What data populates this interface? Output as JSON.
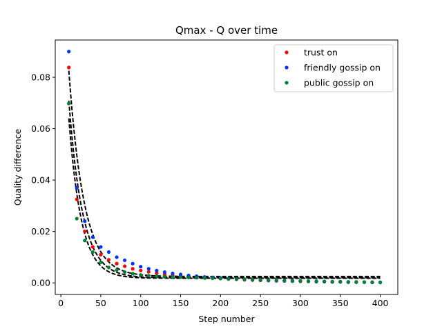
{
  "chart_data": {
    "type": "scatter",
    "title": "Qmax - Q over time",
    "xlabel": "Step number",
    "ylabel": "Quality difference",
    "xlim": [
      -7,
      422
    ],
    "ylim": [
      -0.0045,
      0.0945
    ],
    "xticks": [
      0,
      50,
      100,
      150,
      200,
      250,
      300,
      350,
      400
    ],
    "yticks": [
      0.0,
      0.02,
      0.04,
      0.06,
      0.08
    ],
    "xtick_labels": [
      "0",
      "50",
      "100",
      "150",
      "200",
      "250",
      "300",
      "350",
      "400"
    ],
    "ytick_labels": [
      "0.00",
      "0.02",
      "0.04",
      "0.06",
      "0.08"
    ],
    "grid": false,
    "legend_position": "top-right",
    "x": [
      10,
      20,
      30,
      40,
      50,
      60,
      70,
      80,
      90,
      100,
      110,
      120,
      130,
      140,
      150,
      160,
      170,
      180,
      190,
      200,
      210,
      220,
      230,
      240,
      250,
      260,
      270,
      280,
      290,
      300,
      310,
      320,
      330,
      340,
      350,
      360,
      370,
      380,
      390,
      400
    ],
    "series": [
      {
        "name": "trust on",
        "color": "#ff0000",
        "values": [
          0.0838,
          0.0325,
          0.02,
          0.014,
          0.011,
          0.009,
          0.0075,
          0.0065,
          0.0055,
          0.0048,
          0.0043,
          0.0038,
          0.0034,
          0.003,
          0.0027,
          0.0025,
          0.0023,
          0.0021,
          0.0019,
          0.0017,
          0.0015,
          0.0014,
          0.0012,
          0.0011,
          0.001,
          0.0009,
          0.0008,
          0.0008,
          0.0007,
          0.0006,
          0.0006,
          0.0005,
          0.0005,
          0.0004,
          0.0004,
          0.0003,
          0.0003,
          0.0003,
          0.0002,
          0.0002
        ]
      },
      {
        "name": "friendly gossip on",
        "color": "#0033ff",
        "values": [
          0.09,
          0.037,
          0.024,
          0.0178,
          0.014,
          0.012,
          0.01,
          0.0088,
          0.0075,
          0.0063,
          0.0055,
          0.0048,
          0.0042,
          0.0037,
          0.0033,
          0.0029,
          0.0026,
          0.0023,
          0.0021,
          0.0019,
          0.0017,
          0.0015,
          0.0014,
          0.0012,
          0.0011,
          0.001,
          0.0009,
          0.0008,
          0.0007,
          0.0007,
          0.0006,
          0.0005,
          0.0005,
          0.0004,
          0.0004,
          0.0003,
          0.0003,
          0.0003,
          0.0002,
          0.0002
        ]
      },
      {
        "name": "public gossip on",
        "color": "#008033",
        "values": [
          0.0698,
          0.025,
          0.0165,
          0.012,
          0.008,
          0.006,
          0.005,
          0.0042,
          0.0036,
          0.0031,
          0.0028,
          0.0026,
          0.0024,
          0.0023,
          0.0022,
          0.0021,
          0.002,
          0.0019,
          0.0018,
          0.0017,
          0.0016,
          0.0015,
          0.0014,
          0.0013,
          0.0012,
          0.0011,
          0.001,
          0.0009,
          0.0009,
          0.0008,
          0.0007,
          0.0007,
          0.0006,
          0.0005,
          0.0005,
          0.0004,
          0.0004,
          0.0003,
          0.0003,
          0.0002
        ]
      }
    ],
    "fit_curves": [
      {
        "style": "dashed",
        "color": "#000000",
        "a": 0.136,
        "b": 0.053,
        "c": 0.0025
      },
      {
        "style": "dashed",
        "color": "#000000",
        "a": 0.123,
        "b": 0.058,
        "c": 0.002
      },
      {
        "style": "dashed",
        "color": "#000000",
        "a": 0.118,
        "b": 0.064,
        "c": 0.0018
      }
    ]
  }
}
